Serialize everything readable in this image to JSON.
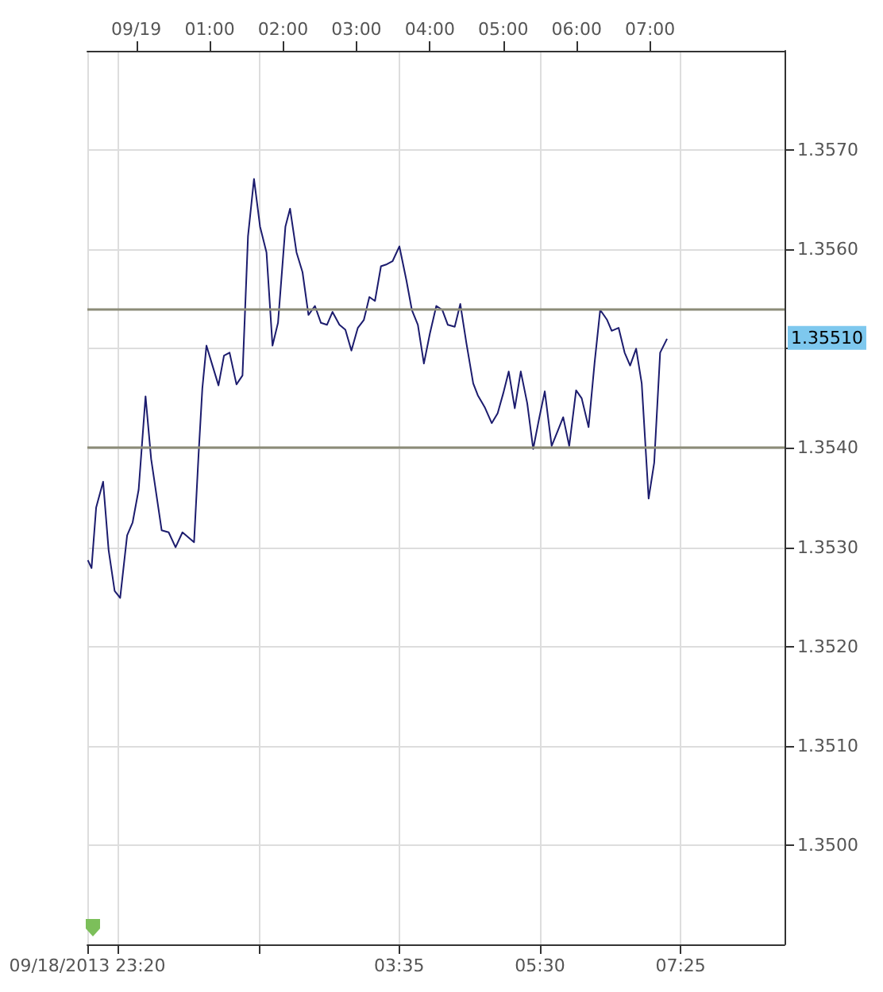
{
  "chart_data": {
    "type": "line",
    "x": [
      -0.66,
      -0.61,
      -0.547,
      -0.452,
      -0.377,
      -0.295,
      -0.22,
      -0.125,
      -0.05,
      0.032,
      0.126,
      0.202,
      0.346,
      0.441,
      0.535,
      0.629,
      0.787,
      0.849,
      0.9,
      0.956,
      1.038,
      1.12,
      1.195,
      1.271,
      1.365,
      1.447,
      1.522,
      1.604,
      1.686,
      1.774,
      1.856,
      1.931,
      2.032,
      2.095,
      2.183,
      2.265,
      2.346,
      2.434,
      2.516,
      2.598,
      2.673,
      2.768,
      2.849,
      2.931,
      3.019,
      3.101,
      3.176,
      3.252,
      3.334,
      3.415,
      3.491,
      3.585,
      3.68,
      3.755,
      3.837,
      3.919,
      4.0,
      4.088,
      4.17,
      4.245,
      4.339,
      4.415,
      4.497,
      4.591,
      4.654,
      4.748,
      4.843,
      4.924,
      5.0,
      5.075,
      5.157,
      5.239,
      5.327,
      5.408,
      5.49,
      5.566,
      5.66,
      5.742,
      5.817,
      5.899,
      5.993,
      6.069,
      6.163,
      6.245,
      6.321,
      6.415,
      6.478,
      6.572,
      6.654,
      6.729,
      6.811,
      6.887,
      6.981,
      7.057,
      7.138,
      7.232
    ],
    "series": [
      {
        "color": "#1c1c6e",
        "values": [
          1.35287,
          1.35279,
          1.3534,
          1.35366,
          1.35297,
          1.35256,
          1.35249,
          1.35312,
          1.35325,
          1.35358,
          1.35452,
          1.35389,
          1.35317,
          1.35315,
          1.353,
          1.35315,
          1.35305,
          1.35394,
          1.3546,
          1.35503,
          1.35483,
          1.35463,
          1.35493,
          1.35496,
          1.35464,
          1.35473,
          1.35613,
          1.35671,
          1.35623,
          1.35597,
          1.35503,
          1.35526,
          1.35623,
          1.35641,
          1.35597,
          1.35577,
          1.35534,
          1.35543,
          1.35526,
          1.35524,
          1.35537,
          1.35524,
          1.35519,
          1.35498,
          1.35521,
          1.35529,
          1.35552,
          1.35548,
          1.35583,
          1.35585,
          1.35588,
          1.35603,
          1.35569,
          1.35539,
          1.35524,
          1.35485,
          1.35515,
          1.35543,
          1.35539,
          1.35524,
          1.35522,
          1.35545,
          1.35506,
          1.35465,
          1.35453,
          1.35441,
          1.35425,
          1.35435,
          1.35455,
          1.35477,
          1.3544,
          1.35477,
          1.35445,
          1.35399,
          1.3543,
          1.35457,
          1.35402,
          1.35417,
          1.35431,
          1.35402,
          1.35458,
          1.3545,
          1.35421,
          1.35486,
          1.35539,
          1.35529,
          1.35518,
          1.35521,
          1.35496,
          1.35483,
          1.355,
          1.35465,
          1.35349,
          1.35385,
          1.35496,
          1.3551
        ]
      }
    ],
    "xlim": [
      -0.667,
      8.833
    ],
    "xticks": [
      {
        "value": -0.667,
        "label": "09/18/2013 23:20"
      },
      {
        "value": -0.25,
        "label": null
      },
      {
        "value": 1.667,
        "label": null
      },
      {
        "value": 3.583,
        "label": "03:35"
      },
      {
        "value": 5.5,
        "label": "05:30"
      },
      {
        "value": 7.417,
        "label": "07:25"
      }
    ],
    "x2lim": [
      -0.667,
      8.833
    ],
    "x2ticks": [
      {
        "value": 0,
        "label": "09/19"
      },
      {
        "value": 1,
        "label": "01:00"
      },
      {
        "value": 2,
        "label": "02:00"
      },
      {
        "value": 3,
        "label": "03:00"
      },
      {
        "value": 4,
        "label": "04:00"
      },
      {
        "value": 5,
        "label": "05:00"
      },
      {
        "value": 6,
        "label": "06:00"
      },
      {
        "value": 7,
        "label": "07:00"
      }
    ],
    "ylim": [
      1.349,
      1.358
    ],
    "yticks": [
      {
        "value": 1.35,
        "label": "1.3500"
      },
      {
        "value": 1.351,
        "label": "1.3510"
      },
      {
        "value": 1.352,
        "label": "1.3520"
      },
      {
        "value": 1.353,
        "label": "1.3530"
      },
      {
        "value": 1.354,
        "label": "1.3540"
      },
      {
        "value": 1.355,
        "label": null
      },
      {
        "value": 1.356,
        "label": "1.3560"
      },
      {
        "value": 1.357,
        "label": "1.3570"
      }
    ],
    "ref_lines": [
      {
        "axis": "y",
        "value": 1.3554,
        "color": "#8c8c78"
      },
      {
        "axis": "y",
        "value": 1.354,
        "color": "#8c8c78"
      }
    ],
    "annotations": [
      "1.35510"
    ],
    "grid": true,
    "marker": "none",
    "line_style": "solid"
  }
}
